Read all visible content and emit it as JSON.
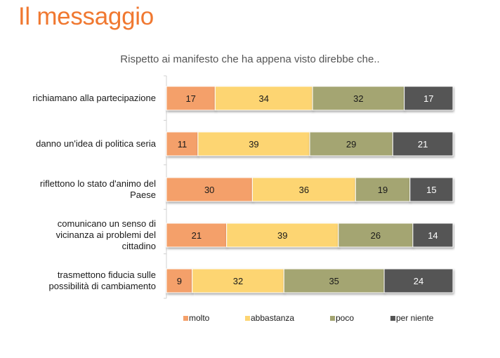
{
  "page": {
    "title": "Il messaggio"
  },
  "colors": {
    "title": "#F07830",
    "molto": "#F4A06A",
    "abbastanza": "#FDD572",
    "poco": "#A4A572",
    "per_niente": "#555555"
  },
  "chart_data": {
    "type": "bar",
    "orientation": "horizontal",
    "stacked": true,
    "percent": true,
    "title": "Rispetto ai manifesto che ha appena visto direbbe che..",
    "categories": [
      [
        "richiamano alla partecipazione"
      ],
      [
        "danno un'idea di politica seria"
      ],
      [
        "riflettono lo stato d'animo del",
        "Paese"
      ],
      [
        "comunicano un senso di",
        "vicinanza ai problemi del",
        "cittadino"
      ],
      [
        "trasmettono fiducia sulle",
        "possibilità di cambiamento"
      ]
    ],
    "series": [
      {
        "name": "molto",
        "color": "#F4A06A",
        "text_color": "#1a1a1a",
        "values": [
          17,
          11,
          30,
          21,
          9
        ]
      },
      {
        "name": "abbastanza",
        "color": "#FDD572",
        "text_color": "#1a1a1a",
        "values": [
          34,
          39,
          36,
          39,
          32
        ]
      },
      {
        "name": "poco",
        "color": "#A4A572",
        "text_color": "#1a1a1a",
        "values": [
          32,
          29,
          19,
          26,
          35
        ]
      },
      {
        "name": "per niente",
        "color": "#555555",
        "text_color": "#ffffff",
        "values": [
          17,
          21,
          15,
          14,
          24
        ]
      }
    ],
    "xlim": [
      0,
      100
    ],
    "legend_position": "bottom",
    "grid": false
  }
}
